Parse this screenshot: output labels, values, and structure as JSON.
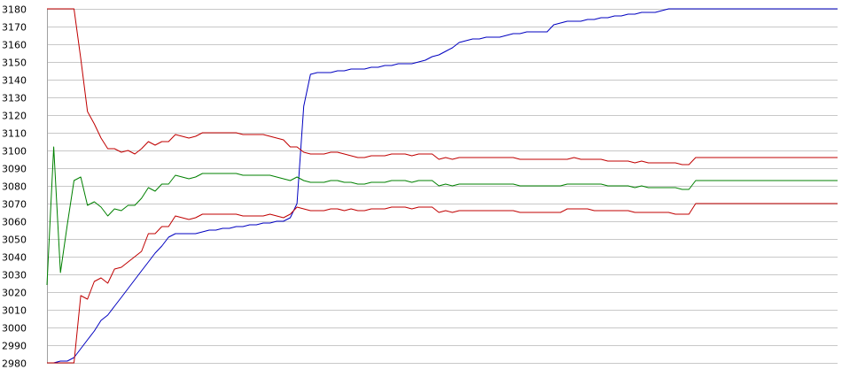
{
  "chart_data": {
    "type": "line",
    "title": "",
    "xlabel": "",
    "ylabel": "",
    "ylim": [
      2980,
      3180
    ],
    "yticks": [
      2980,
      2990,
      3000,
      3010,
      3020,
      3030,
      3040,
      3050,
      3060,
      3070,
      3080,
      3090,
      3100,
      3110,
      3120,
      3130,
      3140,
      3150,
      3160,
      3170,
      3180
    ],
    "grid": "horizontal",
    "legend": "none",
    "x": [
      0,
      1,
      2,
      3,
      4,
      5,
      6,
      7,
      8,
      9,
      10,
      11,
      12,
      13,
      14,
      15,
      16,
      17,
      18,
      19,
      20,
      21,
      22,
      23,
      24,
      25,
      26,
      27,
      28,
      29,
      30,
      31,
      32,
      33,
      34,
      35,
      36,
      37,
      38,
      39,
      40,
      41,
      42,
      43,
      44,
      45,
      46,
      47,
      48,
      49,
      50,
      51,
      52,
      53,
      54,
      55,
      56,
      57,
      58,
      59,
      60,
      61,
      62,
      63,
      64,
      65,
      66,
      67,
      68,
      69,
      70,
      71,
      72,
      73,
      74,
      75,
      76,
      77,
      78,
      79,
      80,
      81,
      82,
      83,
      84,
      85,
      86,
      87,
      88,
      89,
      90,
      91,
      92,
      93,
      94,
      95,
      96,
      97,
      98,
      99,
      100,
      101,
      102,
      103,
      104,
      105,
      106,
      107,
      108,
      109,
      110,
      111,
      112,
      113,
      114,
      115,
      116,
      117
    ],
    "series": [
      {
        "color": "#0000c0",
        "values": [
          2980,
          2980,
          2981,
          2981,
          2983,
          2988,
          2993,
          2998,
          3004,
          3007,
          3012,
          3017,
          3022,
          3027,
          3032,
          3037,
          3042,
          3046,
          3051,
          3053,
          3053,
          3053,
          3053,
          3054,
          3055,
          3055,
          3056,
          3056,
          3057,
          3057,
          3058,
          3058,
          3059,
          3059,
          3060,
          3060,
          3062,
          3070,
          3125,
          3143,
          3144,
          3144,
          3144,
          3145,
          3145,
          3146,
          3146,
          3146,
          3147,
          3147,
          3148,
          3148,
          3149,
          3149,
          3149,
          3150,
          3151,
          3153,
          3154,
          3156,
          3158,
          3161,
          3162,
          3163,
          3163,
          3164,
          3164,
          3164,
          3165,
          3166,
          3166,
          3167,
          3167,
          3167,
          3167,
          3171,
          3172,
          3173,
          3173,
          3173,
          3174,
          3174,
          3175,
          3175,
          3176,
          3176,
          3177,
          3177,
          3178,
          3178,
          3178,
          3179,
          3180,
          3180,
          3180,
          3180,
          3180,
          3180,
          3180,
          3180,
          3180,
          3180,
          3180,
          3180,
          3180,
          3180,
          3180,
          3180,
          3180,
          3180,
          3180,
          3180,
          3180,
          3180,
          3180,
          3180,
          3180,
          3180
        ]
      },
      {
        "color": "#c00000",
        "values": [
          3180,
          3180,
          3180,
          3180,
          3180,
          3152,
          3122,
          3115,
          3107,
          3101,
          3101,
          3099,
          3100,
          3098,
          3101,
          3105,
          3103,
          3105,
          3105,
          3109,
          3108,
          3107,
          3108,
          3110,
          3110,
          3110,
          3110,
          3110,
          3110,
          3109,
          3109,
          3109,
          3109,
          3108,
          3107,
          3106,
          3102,
          3102,
          3099,
          3098,
          3098,
          3098,
          3099,
          3099,
          3098,
          3097,
          3096,
          3096,
          3097,
          3097,
          3097,
          3098,
          3098,
          3098,
          3097,
          3098,
          3098,
          3098,
          3095,
          3096,
          3095,
          3096,
          3096,
          3096,
          3096,
          3096,
          3096,
          3096,
          3096,
          3096,
          3095,
          3095,
          3095,
          3095,
          3095,
          3095,
          3095,
          3095,
          3096,
          3095,
          3095,
          3095,
          3095,
          3094,
          3094,
          3094,
          3094,
          3093,
          3094,
          3093,
          3093,
          3093,
          3093,
          3093,
          3092,
          3092,
          3096,
          3096,
          3096,
          3096,
          3096,
          3096,
          3096,
          3096,
          3096,
          3096,
          3096,
          3096,
          3096,
          3096,
          3096,
          3096,
          3096,
          3096,
          3096,
          3096,
          3096,
          3096
        ]
      },
      {
        "color": "#008000",
        "values": [
          3024,
          3102,
          3031,
          3058,
          3083,
          3085,
          3069,
          3071,
          3068,
          3063,
          3067,
          3066,
          3069,
          3069,
          3073,
          3079,
          3077,
          3081,
          3081,
          3086,
          3085,
          3084,
          3085,
          3087,
          3087,
          3087,
          3087,
          3087,
          3087,
          3086,
          3086,
          3086,
          3086,
          3086,
          3085,
          3084,
          3083,
          3085,
          3083,
          3082,
          3082,
          3082,
          3083,
          3083,
          3082,
          3082,
          3081,
          3081,
          3082,
          3082,
          3082,
          3083,
          3083,
          3083,
          3082,
          3083,
          3083,
          3083,
          3080,
          3081,
          3080,
          3081,
          3081,
          3081,
          3081,
          3081,
          3081,
          3081,
          3081,
          3081,
          3080,
          3080,
          3080,
          3080,
          3080,
          3080,
          3080,
          3081,
          3081,
          3081,
          3081,
          3081,
          3081,
          3080,
          3080,
          3080,
          3080,
          3079,
          3080,
          3079,
          3079,
          3079,
          3079,
          3079,
          3078,
          3078,
          3083,
          3083,
          3083,
          3083,
          3083,
          3083,
          3083,
          3083,
          3083,
          3083,
          3083,
          3083,
          3083,
          3083,
          3083,
          3083,
          3083,
          3083,
          3083,
          3083,
          3083,
          3083
        ]
      },
      {
        "color": "#c00000",
        "values": [
          2980,
          2980,
          2980,
          2980,
          2980,
          3018,
          3016,
          3026,
          3028,
          3025,
          3033,
          3034,
          3037,
          3040,
          3043,
          3053,
          3053,
          3057,
          3057,
          3063,
          3062,
          3061,
          3062,
          3064,
          3064,
          3064,
          3064,
          3064,
          3064,
          3063,
          3063,
          3063,
          3063,
          3064,
          3063,
          3062,
          3064,
          3068,
          3067,
          3066,
          3066,
          3066,
          3067,
          3067,
          3066,
          3067,
          3066,
          3066,
          3067,
          3067,
          3067,
          3068,
          3068,
          3068,
          3067,
          3068,
          3068,
          3068,
          3065,
          3066,
          3065,
          3066,
          3066,
          3066,
          3066,
          3066,
          3066,
          3066,
          3066,
          3066,
          3065,
          3065,
          3065,
          3065,
          3065,
          3065,
          3065,
          3067,
          3067,
          3067,
          3067,
          3066,
          3066,
          3066,
          3066,
          3066,
          3066,
          3065,
          3065,
          3065,
          3065,
          3065,
          3065,
          3064,
          3064,
          3064,
          3070,
          3070,
          3070,
          3070,
          3070,
          3070,
          3070,
          3070,
          3070,
          3070,
          3070,
          3070,
          3070,
          3070,
          3070,
          3070,
          3070,
          3070,
          3070,
          3070,
          3070,
          3070
        ]
      }
    ]
  }
}
